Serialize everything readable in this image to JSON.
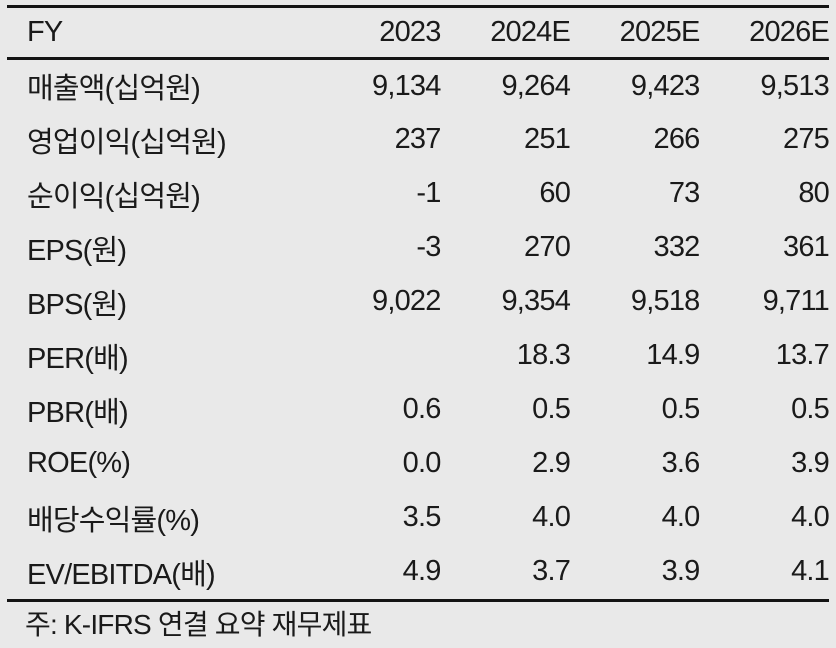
{
  "table": {
    "header": {
      "label": "FY",
      "cols": [
        "2023",
        "2024E",
        "2025E",
        "2026E"
      ]
    },
    "rows": [
      {
        "label": "매출액(십억원)",
        "values": [
          "9,134",
          "9,264",
          "9,423",
          "9,513"
        ]
      },
      {
        "label": "영업이익(십억원)",
        "values": [
          "237",
          "251",
          "266",
          "275"
        ]
      },
      {
        "label": "순이익(십억원)",
        "values": [
          "-1",
          "60",
          "73",
          "80"
        ]
      },
      {
        "label": "EPS(원)",
        "values": [
          "-3",
          "270",
          "332",
          "361"
        ]
      },
      {
        "label": "BPS(원)",
        "values": [
          "9,022",
          "9,354",
          "9,518",
          "9,711"
        ]
      },
      {
        "label": "PER(배)",
        "values": [
          "",
          "18.3",
          "14.9",
          "13.7"
        ]
      },
      {
        "label": "PBR(배)",
        "values": [
          "0.6",
          "0.5",
          "0.5",
          "0.5"
        ]
      },
      {
        "label": "ROE(%)",
        "values": [
          "0.0",
          "2.9",
          "3.6",
          "3.9"
        ]
      },
      {
        "label": "배당수익률(%)",
        "values": [
          "3.5",
          "4.0",
          "4.0",
          "4.0"
        ]
      },
      {
        "label": "EV/EBITDA(배)",
        "values": [
          "4.9",
          "3.7",
          "3.9",
          "4.1"
        ]
      }
    ],
    "footnote": "주: K-IFRS 연결 요약 재무제표"
  },
  "colors": {
    "background": "#e9e9e9",
    "text": "#1a1a1a",
    "rule": "#141414"
  }
}
